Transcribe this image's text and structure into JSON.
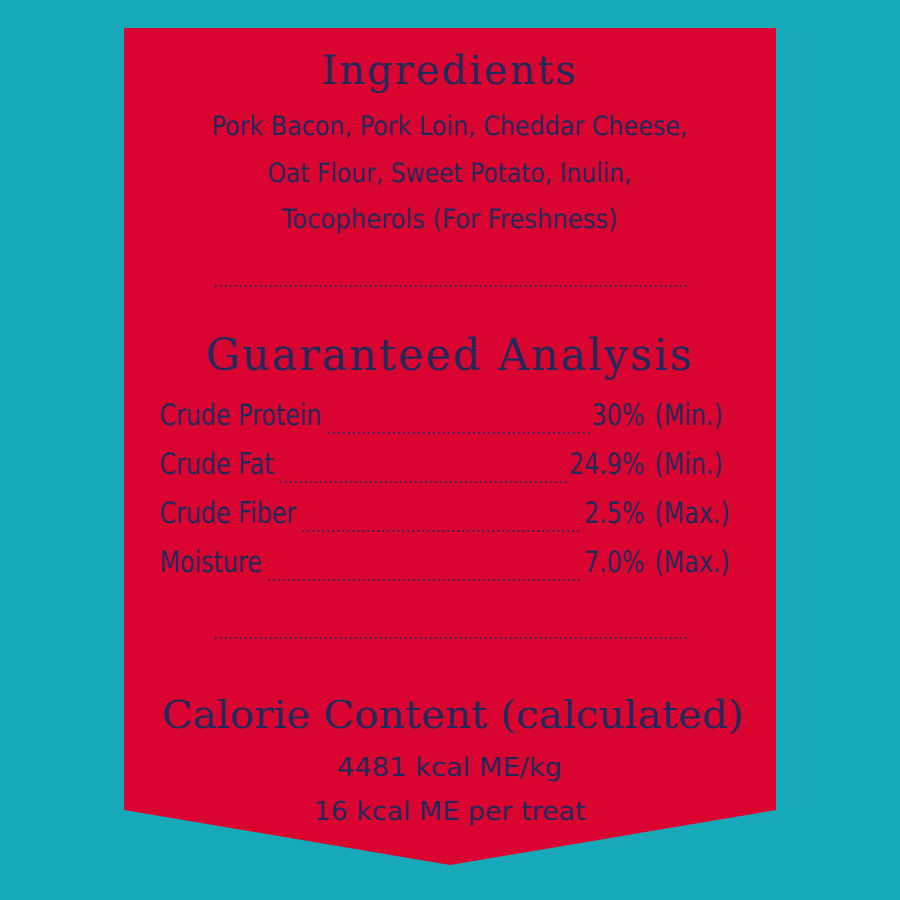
{
  "ingredients": {
    "title": "Ingredients",
    "lines": [
      "Pork Bacon, Pork Loin, Cheddar Cheese,",
      "Oat Flour, Sweet Potato, Inulin,",
      "Tocopherols (For Freshness)"
    ]
  },
  "analysis": {
    "title": "Guaranteed Analysis",
    "rows": [
      {
        "name": "Crude Protein",
        "value": "30%",
        "qualifier": "(Min.)"
      },
      {
        "name": "Crude Fat",
        "value": "24.9%",
        "qualifier": "(Min.)"
      },
      {
        "name": "Crude Fiber",
        "value": "2.5%",
        "qualifier": "(Max.)"
      },
      {
        "name": "Moisture",
        "value": "7.0%",
        "qualifier": "(Max.)"
      }
    ]
  },
  "calories": {
    "title": "Calorie Content (calculated)",
    "lines": [
      "4481 kcal ME/kg",
      "16 kcal ME per treat"
    ]
  }
}
